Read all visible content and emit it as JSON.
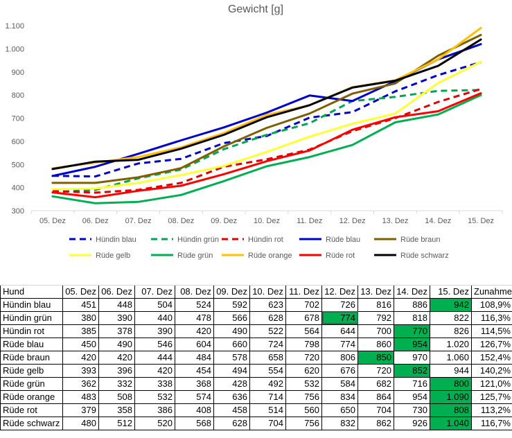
{
  "chart_data": {
    "type": "line",
    "title": "Gewicht [g]",
    "categories": [
      "05. Dez",
      "06. Dez",
      "07. Dez",
      "08. Dez",
      "09. Dez",
      "10. Dez",
      "11. Dez",
      "12. Dez",
      "13. Dez",
      "14. Dez",
      "15. Dez"
    ],
    "ylim": [
      300,
      1100
    ],
    "yticks": [
      "300",
      "400",
      "500",
      "600",
      "700",
      "800",
      "900",
      "1.000",
      "1.100"
    ],
    "ytick_values": [
      300,
      400,
      500,
      600,
      700,
      800,
      900,
      1000,
      1100
    ],
    "grid": false,
    "legend_position": "bottom",
    "series": [
      {
        "name": "Hündin blau",
        "color": "#0000cc",
        "dashed": true,
        "values": [
          451,
          448,
          504,
          524,
          592,
          623,
          702,
          726,
          816,
          886,
          942
        ]
      },
      {
        "name": "Hündin grün",
        "color": "#00a651",
        "dashed": true,
        "values": [
          380,
          390,
          440,
          478,
          566,
          628,
          678,
          774,
          792,
          818,
          822
        ]
      },
      {
        "name": "Hündin rot",
        "color": "#e00000",
        "dashed": true,
        "values": [
          385,
          378,
          390,
          420,
          490,
          522,
          564,
          644,
          700,
          770,
          826
        ]
      },
      {
        "name": "Rüde blau",
        "color": "#0000cc",
        "dashed": false,
        "values": [
          450,
          490,
          546,
          604,
          660,
          724,
          798,
          774,
          860,
          954,
          1020
        ]
      },
      {
        "name": "Rüde braun",
        "color": "#7f5f00",
        "dashed": false,
        "values": [
          420,
          420,
          444,
          484,
          578,
          658,
          720,
          806,
          850,
          970,
          1060
        ]
      },
      {
        "name": "Rüde gelb",
        "color": "#ffff33",
        "dashed": false,
        "values": [
          393,
          396,
          420,
          454,
          494,
          554,
          620,
          676,
          720,
          852,
          944
        ]
      },
      {
        "name": "Rüde grün",
        "color": "#00b050",
        "dashed": false,
        "values": [
          362,
          332,
          338,
          368,
          428,
          492,
          532,
          584,
          682,
          716,
          800
        ]
      },
      {
        "name": "Rüde orange",
        "color": "#ffc000",
        "dashed": false,
        "values": [
          483,
          508,
          532,
          574,
          636,
          714,
          756,
          834,
          864,
          954,
          1090
        ]
      },
      {
        "name": "Rüde rot",
        "color": "#ff0000",
        "dashed": false,
        "values": [
          379,
          358,
          386,
          408,
          458,
          514,
          560,
          650,
          704,
          730,
          808
        ]
      },
      {
        "name": "Rüde schwarz",
        "color": "#000000",
        "dashed": false,
        "values": [
          480,
          512,
          520,
          568,
          628,
          704,
          756,
          832,
          862,
          926,
          1040
        ]
      }
    ]
  },
  "table": {
    "header": [
      "Hund",
      "05. Dez",
      "06. Dez",
      "07. Dez",
      "08. Dez",
      "09. Dez",
      "10. Dez",
      "11. Dez",
      "12. Dez",
      "13. Dez",
      "14. Dez",
      "15. Dez",
      "Zunahme"
    ],
    "highlight_color": "#00b050",
    "rows": [
      {
        "label": "Hündin blau",
        "cells": [
          "451",
          "448",
          "504",
          "524",
          "592",
          "623",
          "702",
          "726",
          "816",
          "886",
          "942"
        ],
        "zunahme": "108,9%",
        "highlight": 10
      },
      {
        "label": "Hündin grün",
        "cells": [
          "380",
          "390",
          "440",
          "478",
          "566",
          "628",
          "678",
          "774",
          "792",
          "818",
          "822"
        ],
        "zunahme": "116,3%",
        "highlight": 7,
        "selected": 7
      },
      {
        "label": "Hündin rot",
        "cells": [
          "385",
          "378",
          "390",
          "420",
          "490",
          "522",
          "564",
          "644",
          "700",
          "770",
          "826"
        ],
        "zunahme": "114,5%",
        "highlight": 9
      },
      {
        "label": "Rüde blau",
        "cells": [
          "450",
          "490",
          "546",
          "604",
          "660",
          "724",
          "798",
          "774",
          "860",
          "954",
          "1.020"
        ],
        "zunahme": "126,7%",
        "highlight": 9
      },
      {
        "label": "Rüde braun",
        "cells": [
          "420",
          "420",
          "444",
          "484",
          "578",
          "658",
          "720",
          "806",
          "850",
          "970",
          "1.060"
        ],
        "zunahme": "152,4%",
        "highlight": 8
      },
      {
        "label": "Rüde gelb",
        "cells": [
          "393",
          "396",
          "420",
          "454",
          "494",
          "554",
          "620",
          "676",
          "720",
          "852",
          "944"
        ],
        "zunahme": "140,2%",
        "highlight": 9
      },
      {
        "label": "Rüde grün",
        "cells": [
          "362",
          "332",
          "338",
          "368",
          "428",
          "492",
          "532",
          "584",
          "682",
          "716",
          "800"
        ],
        "zunahme": "121,0%",
        "highlight": 10
      },
      {
        "label": "Rüde orange",
        "cells": [
          "483",
          "508",
          "532",
          "574",
          "636",
          "714",
          "756",
          "834",
          "864",
          "954",
          "1.090"
        ],
        "zunahme": "125,7%",
        "highlight": 10
      },
      {
        "label": "Rüde rot",
        "cells": [
          "379",
          "358",
          "386",
          "408",
          "458",
          "514",
          "560",
          "650",
          "704",
          "730",
          "808"
        ],
        "zunahme": "113,2%",
        "highlight": 10
      },
      {
        "label": "Rüde schwarz",
        "cells": [
          "480",
          "512",
          "520",
          "568",
          "628",
          "704",
          "756",
          "832",
          "862",
          "926",
          "1.040"
        ],
        "zunahme": "116,7%",
        "highlight": 10
      }
    ]
  }
}
